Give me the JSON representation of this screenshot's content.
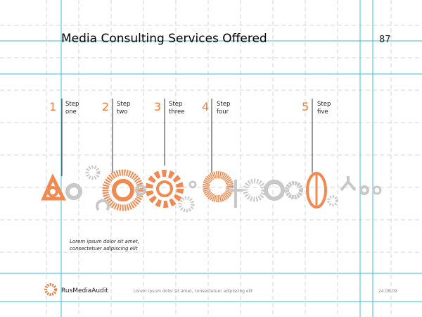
{
  "header": {
    "title": "Media Consulting Services Offered",
    "page_number": "87"
  },
  "steps": [
    {
      "number": "1",
      "label": [
        "Step",
        "one"
      ]
    },
    {
      "number": "2",
      "label": [
        "Step",
        "two"
      ]
    },
    {
      "number": "3",
      "label": [
        "Step",
        "three"
      ]
    },
    {
      "number": "4",
      "label": [
        "Step",
        "four"
      ]
    },
    {
      "number": "5",
      "label": [
        "Step",
        "five"
      ]
    }
  ],
  "caption": [
    "Lorem ipsum dolor sit amet,",
    "consectetuer adipiscing elit"
  ],
  "footer": {
    "logo": "RusMediaAudit",
    "text": "Lorem ipsum dolor sit amet, consectetuer adipiscing elit",
    "date": "24.08.09"
  }
}
